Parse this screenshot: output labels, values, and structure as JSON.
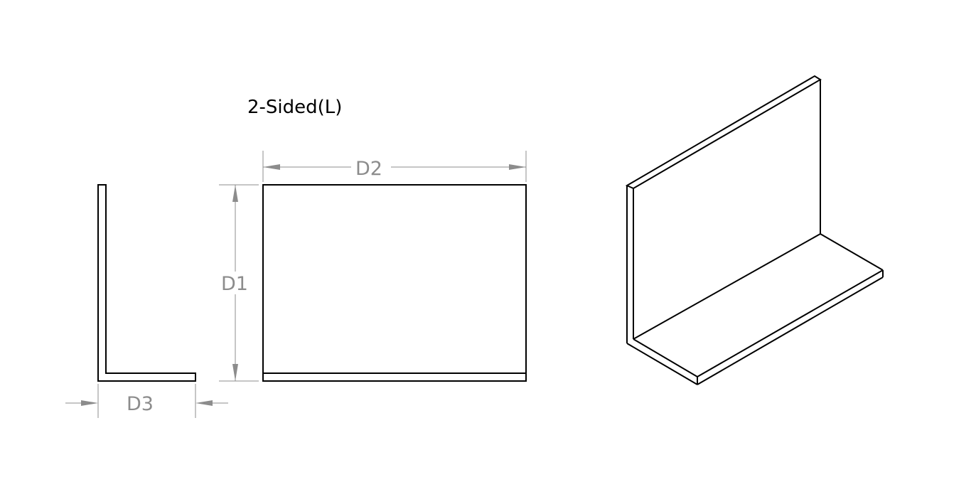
{
  "title": "2-Sided(L)",
  "dimensions": {
    "d1": "D1",
    "d2": "D2",
    "d3": "D3"
  },
  "colors": {
    "outline": "#000000",
    "dimension": "#8c8c8c",
    "background": "#ffffff"
  }
}
